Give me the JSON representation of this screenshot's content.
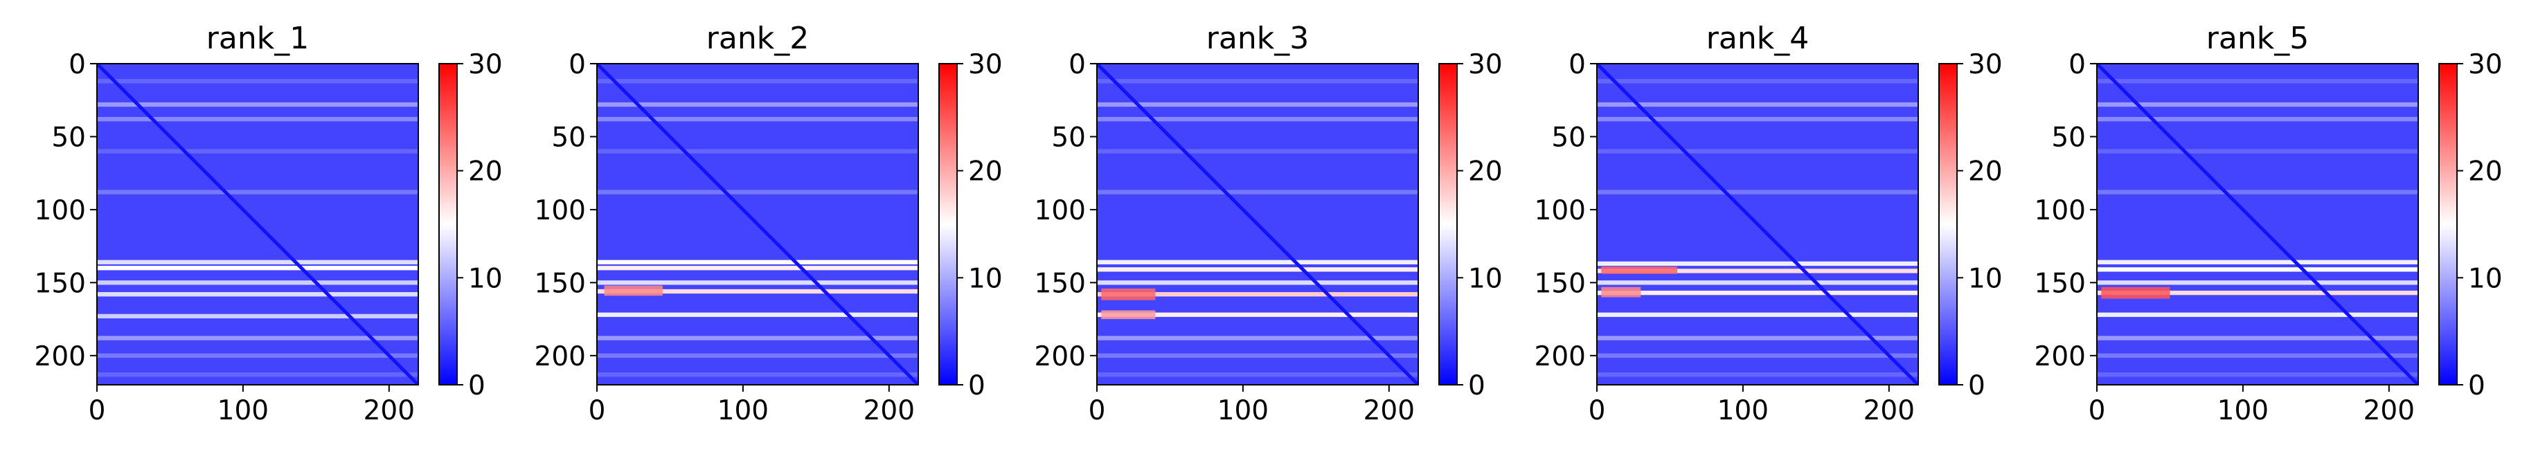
{
  "figure": {
    "colormap": {
      "low": "#0000ff",
      "mid": "#ffffff",
      "high": "#ff0000"
    },
    "background": "#ffffff"
  },
  "chart_data": [
    {
      "type": "heatmap",
      "title": "rank_1",
      "x_range": [
        0,
        220
      ],
      "y_range": [
        0,
        220
      ],
      "y_inverted": true,
      "xticks": [
        0,
        100,
        200
      ],
      "yticks": [
        0,
        50,
        100,
        150,
        200
      ],
      "colorbar": {
        "range": [
          0,
          30
        ],
        "ticks": [
          0,
          10,
          20,
          30
        ]
      },
      "background_value": 4,
      "diagonal_value": 1,
      "row_bands": [
        {
          "y": 12,
          "v": 6
        },
        {
          "y": 28,
          "v": 9
        },
        {
          "y": 38,
          "v": 8
        },
        {
          "y": 60,
          "v": 6
        },
        {
          "y": 88,
          "v": 7
        },
        {
          "y": 136,
          "v": 13
        },
        {
          "y": 140,
          "v": 15
        },
        {
          "y": 150,
          "v": 12
        },
        {
          "y": 158,
          "v": 13
        },
        {
          "y": 173,
          "v": 12
        },
        {
          "y": 188,
          "v": 9
        },
        {
          "y": 200,
          "v": 7
        },
        {
          "y": 213,
          "v": 6
        }
      ],
      "hotspots": []
    },
    {
      "type": "heatmap",
      "title": "rank_2",
      "x_range": [
        0,
        220
      ],
      "y_range": [
        0,
        220
      ],
      "y_inverted": true,
      "xticks": [
        0,
        100,
        200
      ],
      "yticks": [
        0,
        50,
        100,
        150,
        200
      ],
      "colorbar": {
        "range": [
          0,
          30
        ],
        "ticks": [
          0,
          10,
          20,
          30
        ]
      },
      "background_value": 4,
      "diagonal_value": 1,
      "row_bands": [
        {
          "y": 12,
          "v": 6
        },
        {
          "y": 28,
          "v": 9
        },
        {
          "y": 38,
          "v": 8
        },
        {
          "y": 60,
          "v": 6
        },
        {
          "y": 88,
          "v": 7
        },
        {
          "y": 136,
          "v": 15
        },
        {
          "y": 140,
          "v": 16
        },
        {
          "y": 150,
          "v": 13
        },
        {
          "y": 156,
          "v": 17
        },
        {
          "y": 172,
          "v": 14
        },
        {
          "y": 188,
          "v": 9
        },
        {
          "y": 200,
          "v": 7
        },
        {
          "y": 213,
          "v": 6
        }
      ],
      "hotspots": [
        {
          "x0": 5,
          "x1": 45,
          "y0": 152,
          "y1": 159,
          "v": 22
        }
      ]
    },
    {
      "type": "heatmap",
      "title": "rank_3",
      "x_range": [
        0,
        220
      ],
      "y_range": [
        0,
        220
      ],
      "y_inverted": true,
      "xticks": [
        0,
        100,
        200
      ],
      "yticks": [
        0,
        50,
        100,
        150,
        200
      ],
      "colorbar": {
        "range": [
          0,
          30
        ],
        "ticks": [
          0,
          10,
          20,
          30
        ]
      },
      "background_value": 4,
      "diagonal_value": 1,
      "row_bands": [
        {
          "y": 12,
          "v": 6
        },
        {
          "y": 28,
          "v": 9
        },
        {
          "y": 38,
          "v": 8
        },
        {
          "y": 60,
          "v": 6
        },
        {
          "y": 88,
          "v": 7
        },
        {
          "y": 136,
          "v": 14
        },
        {
          "y": 141,
          "v": 16
        },
        {
          "y": 150,
          "v": 13
        },
        {
          "y": 158,
          "v": 18
        },
        {
          "y": 172,
          "v": 16
        },
        {
          "y": 188,
          "v": 9
        },
        {
          "y": 200,
          "v": 7
        },
        {
          "y": 213,
          "v": 6
        }
      ],
      "hotspots": [
        {
          "x0": 3,
          "x1": 40,
          "y0": 154,
          "y1": 162,
          "v": 24
        },
        {
          "x0": 3,
          "x1": 40,
          "y0": 169,
          "y1": 175,
          "v": 21
        }
      ]
    },
    {
      "type": "heatmap",
      "title": "rank_4",
      "x_range": [
        0,
        220
      ],
      "y_range": [
        0,
        220
      ],
      "y_inverted": true,
      "xticks": [
        0,
        100,
        200
      ],
      "yticks": [
        0,
        50,
        100,
        150,
        200
      ],
      "colorbar": {
        "range": [
          0,
          30
        ],
        "ticks": [
          0,
          10,
          20,
          30
        ]
      },
      "background_value": 4,
      "diagonal_value": 1,
      "row_bands": [
        {
          "y": 12,
          "v": 6
        },
        {
          "y": 28,
          "v": 9
        },
        {
          "y": 38,
          "v": 8
        },
        {
          "y": 60,
          "v": 6
        },
        {
          "y": 88,
          "v": 7
        },
        {
          "y": 137,
          "v": 14
        },
        {
          "y": 142,
          "v": 17
        },
        {
          "y": 150,
          "v": 13
        },
        {
          "y": 157,
          "v": 16
        },
        {
          "y": 172,
          "v": 14
        },
        {
          "y": 188,
          "v": 9
        },
        {
          "y": 200,
          "v": 7
        },
        {
          "y": 213,
          "v": 6
        }
      ],
      "hotspots": [
        {
          "x0": 3,
          "x1": 55,
          "y0": 139,
          "y1": 144,
          "v": 24
        },
        {
          "x0": 3,
          "x1": 30,
          "y0": 153,
          "y1": 160,
          "v": 22
        }
      ]
    },
    {
      "type": "heatmap",
      "title": "rank_5",
      "x_range": [
        0,
        220
      ],
      "y_range": [
        0,
        220
      ],
      "y_inverted": true,
      "xticks": [
        0,
        100,
        200
      ],
      "yticks": [
        0,
        50,
        100,
        150,
        200
      ],
      "colorbar": {
        "range": [
          0,
          30
        ],
        "ticks": [
          0,
          10,
          20,
          30
        ]
      },
      "background_value": 4,
      "diagonal_value": 1,
      "row_bands": [
        {
          "y": 12,
          "v": 6
        },
        {
          "y": 28,
          "v": 9
        },
        {
          "y": 38,
          "v": 8
        },
        {
          "y": 60,
          "v": 6
        },
        {
          "y": 88,
          "v": 7
        },
        {
          "y": 136,
          "v": 14
        },
        {
          "y": 141,
          "v": 15
        },
        {
          "y": 150,
          "v": 13
        },
        {
          "y": 157,
          "v": 17
        },
        {
          "y": 172,
          "v": 14
        },
        {
          "y": 188,
          "v": 9
        },
        {
          "y": 200,
          "v": 7
        },
        {
          "y": 213,
          "v": 6
        }
      ],
      "hotspots": [
        {
          "x0": 3,
          "x1": 50,
          "y0": 153,
          "y1": 161,
          "v": 25
        }
      ]
    }
  ]
}
